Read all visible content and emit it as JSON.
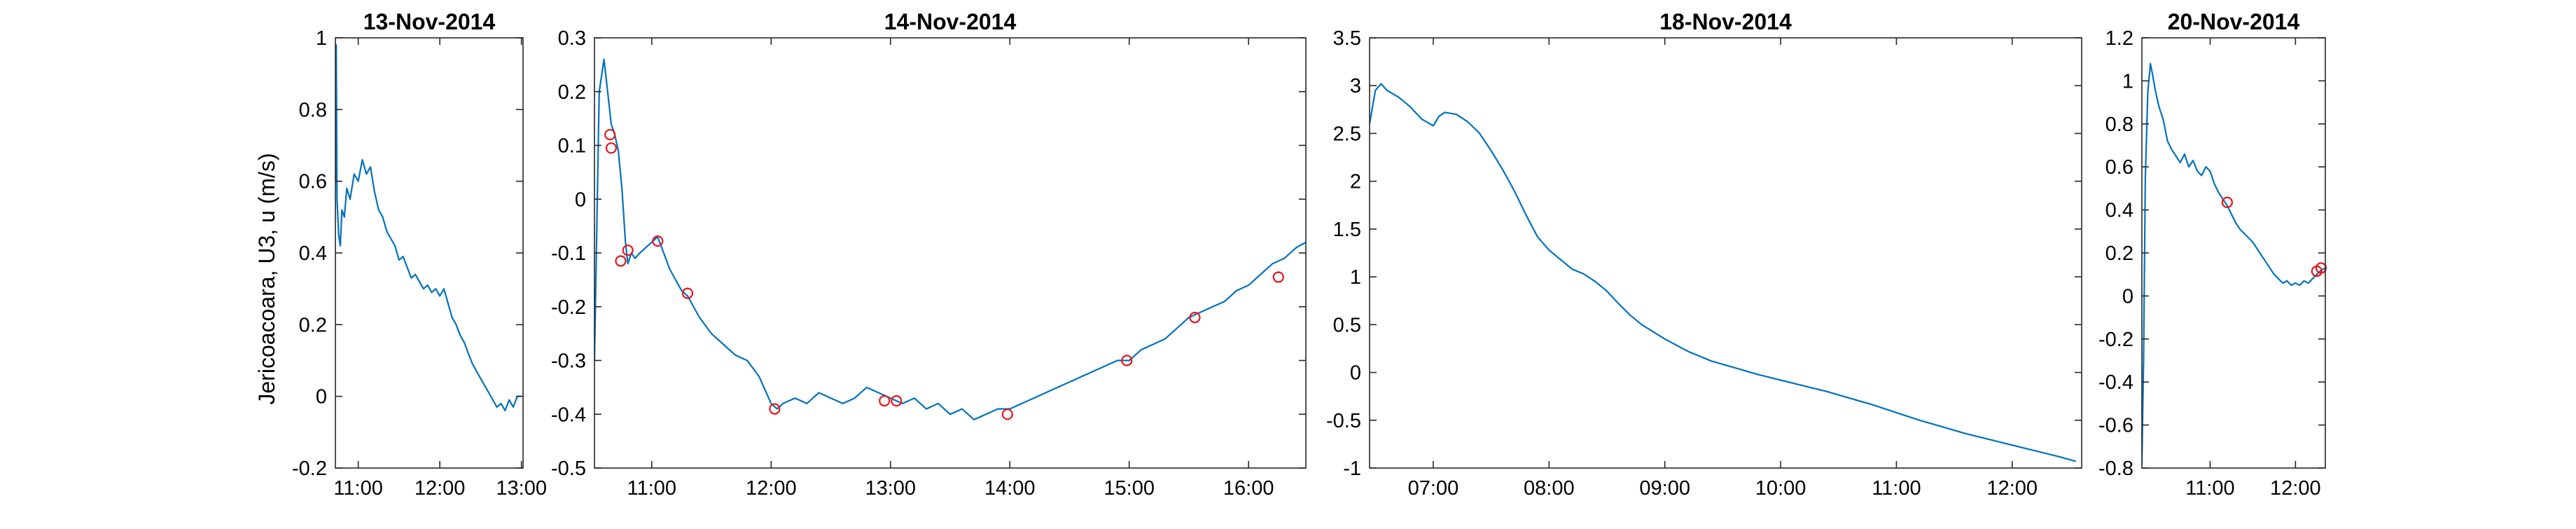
{
  "figure": {
    "ylabel": "Jericoacoara, U3, u (m/s)",
    "line_color": "#0072BD",
    "marker_color": "#E8141B",
    "axis_color": "#262626"
  },
  "chart_data": [
    {
      "type": "line",
      "title": "13-Nov-2014",
      "xlabel": "",
      "ylabel": "Jericoacoara, U3, u (m/s)",
      "x_unit": "time of day (hours)",
      "xlim": [
        10.72,
        13.02
      ],
      "ylim": [
        -0.2,
        1.0
      ],
      "xticks": [
        11.0,
        12.0,
        13.0
      ],
      "xtick_labels": [
        "11:00",
        "12:00",
        "13:00"
      ],
      "yticks": [
        -0.2,
        0,
        0.2,
        0.4,
        0.6,
        0.8,
        1.0
      ],
      "ytick_labels": [
        "-0.2",
        "0",
        "0.2",
        "0.4",
        "0.6",
        "0.8",
        "1"
      ],
      "grid": false,
      "series": [
        {
          "line": true,
          "x": [
            10.72,
            10.73,
            10.74,
            10.76,
            10.78,
            10.8,
            10.83,
            10.86,
            10.9,
            10.95,
            11.0,
            11.05,
            11.1,
            11.15,
            11.2,
            11.25,
            11.3,
            11.35,
            11.4,
            11.45,
            11.5,
            11.55,
            11.6,
            11.65,
            11.7,
            11.75,
            11.8,
            11.85,
            11.9,
            11.95,
            12.0,
            12.05,
            12.1,
            12.15,
            12.2,
            12.25,
            12.3,
            12.35,
            12.4,
            12.45,
            12.5,
            12.55,
            12.6,
            12.65,
            12.7,
            12.75,
            12.8,
            12.85,
            12.9,
            12.95,
            13.0
          ],
          "y": [
            0.6,
            0.98,
            0.55,
            0.45,
            0.42,
            0.52,
            0.5,
            0.58,
            0.55,
            0.62,
            0.6,
            0.66,
            0.62,
            0.64,
            0.57,
            0.52,
            0.5,
            0.46,
            0.44,
            0.42,
            0.38,
            0.39,
            0.36,
            0.33,
            0.34,
            0.32,
            0.3,
            0.31,
            0.29,
            0.3,
            0.28,
            0.3,
            0.26,
            0.22,
            0.2,
            0.17,
            0.15,
            0.12,
            0.09,
            0.07,
            0.05,
            0.03,
            0.01,
            -0.01,
            -0.03,
            -0.02,
            -0.04,
            -0.01,
            -0.03,
            0.0,
            0.0
          ]
        }
      ]
    },
    {
      "type": "line",
      "title": "14-Nov-2014",
      "xlabel": "",
      "ylabel": "",
      "x_unit": "time of day (hours)",
      "xlim": [
        10.52,
        16.48
      ],
      "ylim": [
        -0.5,
        0.3
      ],
      "xticks": [
        11,
        12,
        13,
        14,
        15,
        16
      ],
      "xtick_labels": [
        "11:00",
        "12:00",
        "13:00",
        "14:00",
        "15:00",
        "16:00"
      ],
      "yticks": [
        -0.5,
        -0.4,
        -0.3,
        -0.2,
        -0.1,
        0,
        0.1,
        0.2,
        0.3
      ],
      "ytick_labels": [
        "-0.5",
        "-0.4",
        "-0.3",
        "-0.2",
        "-0.1",
        "0",
        "0.1",
        "0.2",
        "0.3"
      ],
      "grid": false,
      "series": [
        {
          "line": true,
          "x": [
            10.52,
            10.56,
            10.6,
            10.63,
            10.66,
            10.69,
            10.72,
            10.75,
            10.78,
            10.8,
            10.83,
            10.86,
            10.9,
            10.95,
            11.0,
            11.05,
            11.1,
            11.15,
            11.2,
            11.25,
            11.3,
            11.4,
            11.5,
            11.6,
            11.7,
            11.8,
            11.9,
            12.0,
            12.05,
            12.1,
            12.2,
            12.3,
            12.4,
            12.5,
            12.6,
            12.7,
            12.8,
            12.9,
            13.0,
            13.1,
            13.2,
            13.3,
            13.4,
            13.5,
            13.6,
            13.7,
            13.8,
            13.9,
            14.0,
            14.1,
            14.2,
            14.3,
            14.4,
            14.5,
            14.6,
            14.7,
            14.8,
            14.9,
            15.0,
            15.1,
            15.2,
            15.3,
            15.4,
            15.5,
            15.6,
            15.7,
            15.8,
            15.9,
            16.0,
            16.1,
            16.2,
            16.3,
            16.4,
            16.48
          ],
          "y": [
            -0.3,
            0.2,
            0.26,
            0.2,
            0.14,
            0.12,
            0.09,
            0.02,
            -0.08,
            -0.12,
            -0.1,
            -0.11,
            -0.1,
            -0.09,
            -0.08,
            -0.07,
            -0.1,
            -0.13,
            -0.15,
            -0.17,
            -0.18,
            -0.22,
            -0.25,
            -0.27,
            -0.29,
            -0.3,
            -0.33,
            -0.38,
            -0.39,
            -0.38,
            -0.37,
            -0.38,
            -0.36,
            -0.37,
            -0.38,
            -0.37,
            -0.35,
            -0.36,
            -0.37,
            -0.38,
            -0.37,
            -0.39,
            -0.38,
            -0.4,
            -0.39,
            -0.41,
            -0.4,
            -0.39,
            -0.39,
            -0.38,
            -0.37,
            -0.36,
            -0.35,
            -0.34,
            -0.33,
            -0.32,
            -0.31,
            -0.3,
            -0.3,
            -0.28,
            -0.27,
            -0.26,
            -0.24,
            -0.22,
            -0.21,
            -0.2,
            -0.19,
            -0.17,
            -0.16,
            -0.14,
            -0.12,
            -0.11,
            -0.09,
            -0.08
          ]
        },
        {
          "line": false,
          "x": [
            10.65,
            10.66,
            10.74,
            10.8,
            11.05,
            11.3,
            12.03,
            12.95,
            13.05,
            13.98,
            14.98,
            15.55,
            16.25
          ],
          "y": [
            0.12,
            0.095,
            -0.115,
            -0.095,
            -0.078,
            -0.175,
            -0.39,
            -0.375,
            -0.375,
            -0.4,
            -0.3,
            -0.22,
            -0.145
          ]
        }
      ]
    },
    {
      "type": "line",
      "title": "18-Nov-2014",
      "xlabel": "",
      "ylabel": "",
      "x_unit": "time of day (hours)",
      "xlim": [
        6.45,
        12.6
      ],
      "ylim": [
        -1.0,
        3.5
      ],
      "xticks": [
        7,
        8,
        9,
        10,
        11,
        12
      ],
      "xtick_labels": [
        "07:00",
        "08:00",
        "09:00",
        "10:00",
        "11:00",
        "12:00"
      ],
      "yticks": [
        -1,
        -0.5,
        0,
        0.5,
        1,
        1.5,
        2,
        2.5,
        3,
        3.5
      ],
      "ytick_labels": [
        "-1",
        "-0.5",
        "0",
        "0.5",
        "1",
        "1.5",
        "2",
        "2.5",
        "3",
        "3.5"
      ],
      "grid": false,
      "series": [
        {
          "line": true,
          "x": [
            6.45,
            6.5,
            6.55,
            6.6,
            6.7,
            6.8,
            6.9,
            7.0,
            7.05,
            7.1,
            7.2,
            7.3,
            7.4,
            7.5,
            7.6,
            7.7,
            7.8,
            7.9,
            8.0,
            8.1,
            8.2,
            8.3,
            8.4,
            8.5,
            8.6,
            8.7,
            8.8,
            9.0,
            9.2,
            9.4,
            9.6,
            9.8,
            10.0,
            10.2,
            10.4,
            10.6,
            10.8,
            11.0,
            11.2,
            11.4,
            11.6,
            11.8,
            12.0,
            12.2,
            12.4,
            12.55
          ],
          "y": [
            2.6,
            2.95,
            3.02,
            2.95,
            2.88,
            2.78,
            2.65,
            2.58,
            2.68,
            2.72,
            2.7,
            2.62,
            2.5,
            2.32,
            2.12,
            1.9,
            1.65,
            1.42,
            1.28,
            1.18,
            1.08,
            1.03,
            0.95,
            0.85,
            0.72,
            0.6,
            0.5,
            0.35,
            0.22,
            0.12,
            0.05,
            -0.02,
            -0.08,
            -0.14,
            -0.2,
            -0.27,
            -0.34,
            -0.42,
            -0.5,
            -0.57,
            -0.64,
            -0.7,
            -0.76,
            -0.82,
            -0.88,
            -0.93
          ]
        }
      ]
    },
    {
      "type": "line",
      "title": "20-Nov-2014",
      "xlabel": "",
      "ylabel": "",
      "x_unit": "time of day (hours)",
      "xlim": [
        10.2,
        12.35
      ],
      "ylim": [
        -0.8,
        1.2
      ],
      "xticks": [
        11,
        12
      ],
      "xtick_labels": [
        "11:00",
        "12:00"
      ],
      "yticks": [
        -0.8,
        -0.6,
        -0.4,
        -0.2,
        0,
        0.2,
        0.4,
        0.6,
        0.8,
        1.0,
        1.2
      ],
      "ytick_labels": [
        "-0.8",
        "-0.6",
        "-0.4",
        "-0.2",
        "0",
        "0.2",
        "0.4",
        "0.6",
        "0.8",
        "1",
        "1.2"
      ],
      "grid": false,
      "series": [
        {
          "line": true,
          "x": [
            10.2,
            10.22,
            10.24,
            10.27,
            10.3,
            10.33,
            10.36,
            10.4,
            10.45,
            10.5,
            10.55,
            10.6,
            10.65,
            10.7,
            10.75,
            10.8,
            10.85,
            10.9,
            10.95,
            11.0,
            11.05,
            11.1,
            11.15,
            11.2,
            11.25,
            11.3,
            11.35,
            11.4,
            11.45,
            11.5,
            11.55,
            11.6,
            11.65,
            11.7,
            11.75,
            11.8,
            11.85,
            11.9,
            11.95,
            12.0,
            12.05,
            12.1,
            12.15,
            12.2,
            12.25,
            12.3,
            12.35
          ],
          "y": [
            -0.78,
            -0.3,
            0.55,
            0.95,
            1.08,
            1.02,
            0.95,
            0.88,
            0.82,
            0.72,
            0.68,
            0.65,
            0.62,
            0.66,
            0.6,
            0.63,
            0.58,
            0.56,
            0.6,
            0.58,
            0.52,
            0.48,
            0.45,
            0.42,
            0.38,
            0.34,
            0.31,
            0.29,
            0.27,
            0.25,
            0.22,
            0.19,
            0.16,
            0.13,
            0.1,
            0.08,
            0.06,
            0.07,
            0.05,
            0.06,
            0.05,
            0.07,
            0.06,
            0.08,
            0.1,
            0.12,
            0.13
          ]
        },
        {
          "line": false,
          "x": [
            11.2,
            12.25,
            12.3
          ],
          "y": [
            0.435,
            0.115,
            0.13
          ]
        }
      ]
    }
  ]
}
